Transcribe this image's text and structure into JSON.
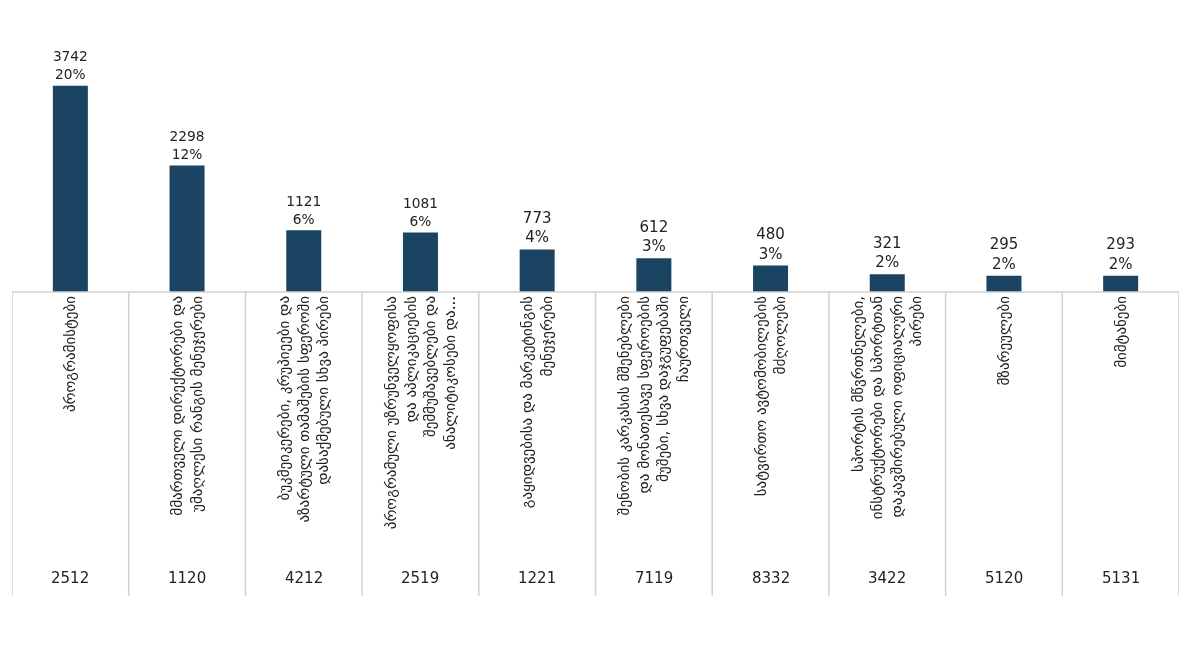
{
  "chart_data": {
    "type": "bar",
    "categories": [
      "პროგრამისტები",
      "მმართველი დირექტორები და უმაღლესი რანგის მენეჯერები",
      "ბუკმეიკერები, კრუპიეები და აზარტული თამაშების სფეროში დასაქმებული სხვა პირები",
      "პროგრამული უზრუნველყოფისა და აპლიკაციების შემმუშავებლები და ანალიტიკოსები და...",
      "გაყიდვებისა და მარკეტინგის მენეჯერები",
      "შენობის კარკასის მშენებლები და მონათესავე სფეროების მუშები, სხვა დაჯგუფებაში ჩაურთველი",
      "სატვირთო ავტომობილების მძღოლები",
      "სპორტის მწვრთნელები, ინსტრუქტორები და სპორტთან დაკავშირებული ოფიციალური პირები",
      "მზარეულები",
      "მიმტანები"
    ],
    "values": [
      3742,
      2298,
      1121,
      1081,
      773,
      612,
      480,
      321,
      295,
      293
    ],
    "value_labels": [
      "3742\n20%",
      "2298\n12%",
      "1121\n6%",
      "1081\n6%",
      "773\n4%",
      "612\n3%",
      "480\n3%",
      "321\n2%",
      "295\n2%",
      "293\n2%"
    ],
    "color": "#1b4463",
    "tick_labels": "x",
    "grid": false,
    "annotations": [
      "2512",
      "1120",
      "4212",
      "2519",
      "1221",
      "7119",
      "8332",
      "3422",
      "5120",
      "5131"
    ]
  }
}
